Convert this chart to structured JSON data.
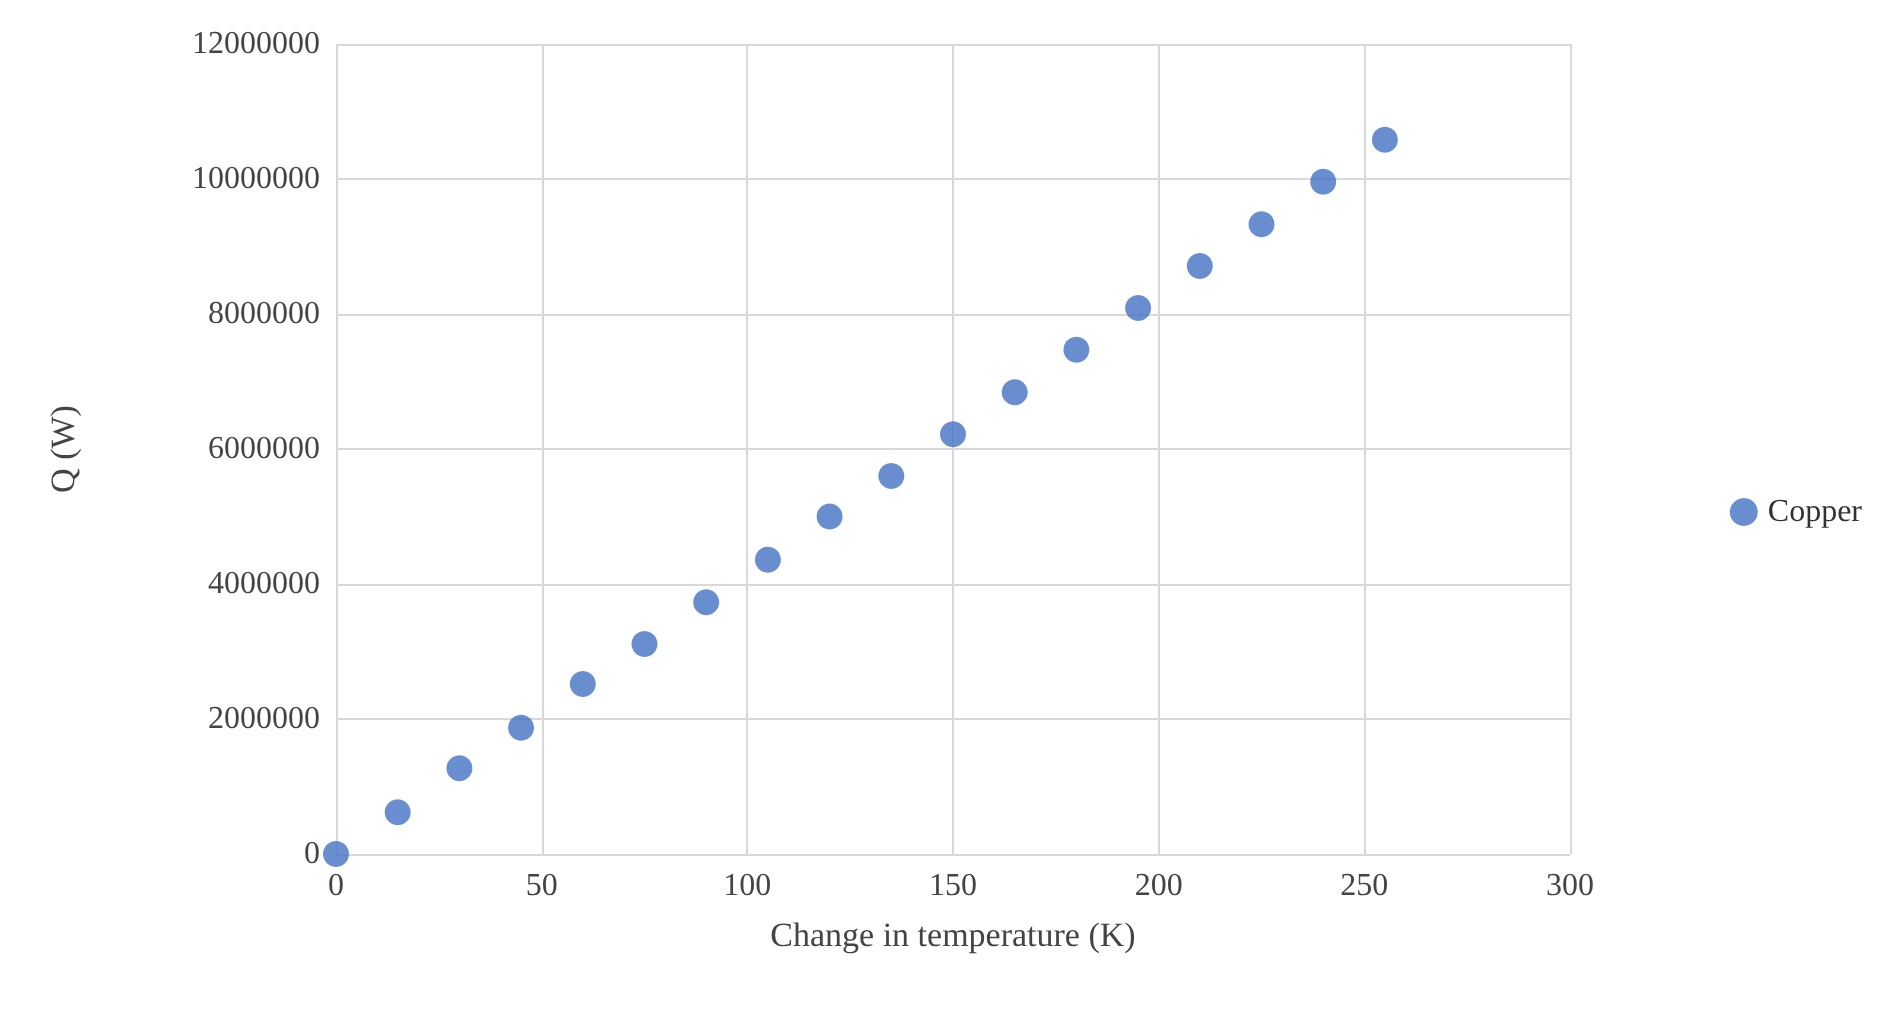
{
  "chart_data": {
    "type": "scatter",
    "xlabel": "Change in temperature (K)",
    "ylabel": "Q (W)",
    "x": [
      0,
      15,
      30,
      45,
      60,
      75,
      90,
      105,
      120,
      135,
      150,
      165,
      180,
      195,
      210,
      225,
      240,
      255
    ],
    "series": [
      {
        "name": "Copper",
        "color": "#4472c4",
        "values": [
          0,
          620000,
          1270000,
          1870000,
          2520000,
          3110000,
          3730000,
          4360000,
          5000000,
          5600000,
          6220000,
          6840000,
          7470000,
          8090000,
          8710000,
          9330000,
          9960000,
          10580000
        ]
      }
    ],
    "xlim": [
      0,
      300
    ],
    "xticks": [
      0,
      50,
      100,
      150,
      200,
      250,
      300
    ],
    "ylim": [
      0,
      12000000
    ],
    "yticks": [
      0,
      2000000,
      4000000,
      6000000,
      8000000,
      10000000,
      12000000
    ],
    "grid": true,
    "legend": "right",
    "marker": "circle"
  }
}
